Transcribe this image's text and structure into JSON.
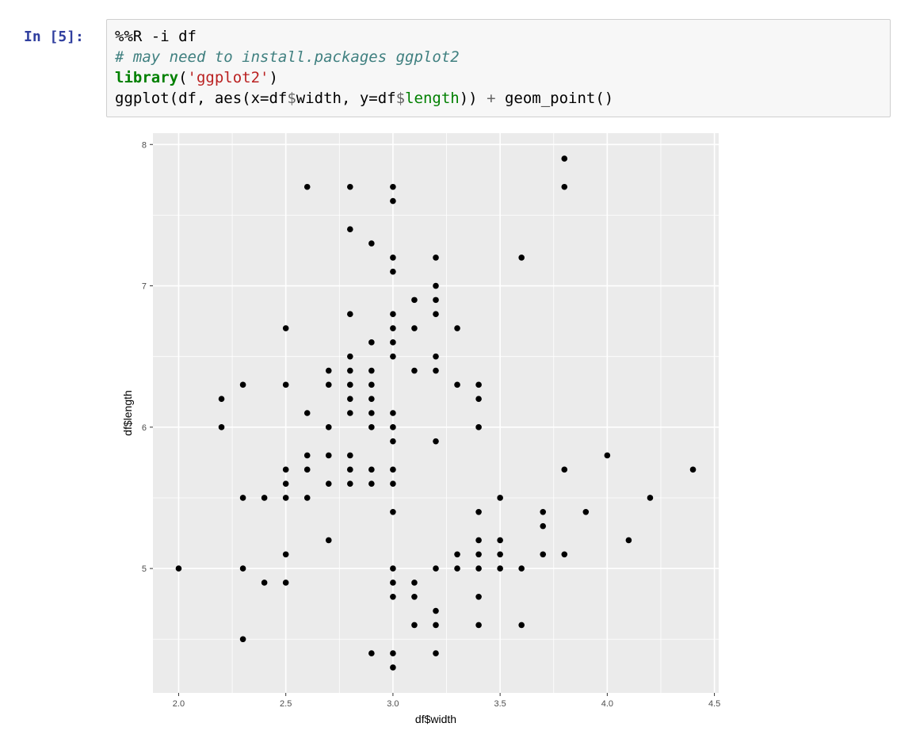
{
  "cell": {
    "prompt": "In [5]:",
    "lines": {
      "l1": "%%R -i df",
      "l2": "# may need to install.packages ggplot2",
      "l3_fn": "library",
      "l3_open": "(",
      "l3_str": "'ggplot2'",
      "l3_close": ")",
      "l4_a": "ggplot(df, aes(x=df",
      "l4_d1": "$",
      "l4_b": "width, y=df",
      "l4_d2": "$",
      "l4_c": "length",
      "l4_e": ")) ",
      "l4_plus": "+",
      "l4_f": " geom_point()"
    }
  },
  "chart_data": {
    "type": "scatter",
    "xlabel": "df$width",
    "ylabel": "df$length",
    "xlim": [
      1.88,
      4.52
    ],
    "ylim": [
      4.12,
      8.08
    ],
    "xticks": [
      "2.0",
      "2.5",
      "3.0",
      "3.5",
      "4.0",
      "4.5"
    ],
    "yticks": [
      "5",
      "6",
      "7",
      "8"
    ],
    "colors": {
      "panel": "#EBEBEB",
      "grid": "#FFFFFF",
      "point": "#000000",
      "axis_text": "#4D4D4D"
    },
    "points": [
      [
        3.8,
        7.9
      ],
      [
        2.6,
        7.7
      ],
      [
        2.8,
        7.7
      ],
      [
        3.0,
        7.7
      ],
      [
        3.8,
        7.7
      ],
      [
        3.0,
        7.6
      ],
      [
        2.8,
        7.4
      ],
      [
        2.9,
        7.3
      ],
      [
        3.0,
        7.2
      ],
      [
        3.2,
        7.2
      ],
      [
        3.6,
        7.2
      ],
      [
        3.0,
        7.1
      ],
      [
        3.2,
        7.0
      ],
      [
        3.1,
        6.9
      ],
      [
        3.2,
        6.9
      ],
      [
        2.8,
        6.8
      ],
      [
        3.0,
        6.8
      ],
      [
        3.2,
        6.8
      ],
      [
        2.5,
        6.7
      ],
      [
        3.0,
        6.7
      ],
      [
        3.1,
        6.7
      ],
      [
        3.3,
        6.7
      ],
      [
        2.9,
        6.6
      ],
      [
        3.0,
        6.6
      ],
      [
        2.8,
        6.5
      ],
      [
        3.0,
        6.5
      ],
      [
        3.2,
        6.5
      ],
      [
        2.7,
        6.4
      ],
      [
        2.8,
        6.4
      ],
      [
        2.9,
        6.4
      ],
      [
        3.1,
        6.4
      ],
      [
        3.2,
        6.4
      ],
      [
        2.3,
        6.3
      ],
      [
        2.5,
        6.3
      ],
      [
        2.7,
        6.3
      ],
      [
        2.8,
        6.3
      ],
      [
        2.9,
        6.3
      ],
      [
        3.3,
        6.3
      ],
      [
        3.4,
        6.3
      ],
      [
        2.2,
        6.2
      ],
      [
        2.8,
        6.2
      ],
      [
        2.9,
        6.2
      ],
      [
        3.4,
        6.2
      ],
      [
        2.6,
        6.1
      ],
      [
        2.8,
        6.1
      ],
      [
        2.9,
        6.1
      ],
      [
        3.0,
        6.1
      ],
      [
        2.2,
        6.0
      ],
      [
        2.7,
        6.0
      ],
      [
        2.9,
        6.0
      ],
      [
        3.0,
        6.0
      ],
      [
        3.4,
        6.0
      ],
      [
        3.0,
        5.9
      ],
      [
        3.2,
        5.9
      ],
      [
        2.6,
        5.8
      ],
      [
        2.7,
        5.8
      ],
      [
        2.8,
        5.8
      ],
      [
        4.0,
        5.8
      ],
      [
        2.5,
        5.7
      ],
      [
        2.6,
        5.7
      ],
      [
        2.8,
        5.7
      ],
      [
        2.9,
        5.7
      ],
      [
        3.0,
        5.7
      ],
      [
        3.8,
        5.7
      ],
      [
        4.4,
        5.7
      ],
      [
        2.5,
        5.6
      ],
      [
        2.7,
        5.6
      ],
      [
        2.8,
        5.6
      ],
      [
        2.9,
        5.6
      ],
      [
        3.0,
        5.6
      ],
      [
        2.3,
        5.5
      ],
      [
        2.4,
        5.5
      ],
      [
        2.5,
        5.5
      ],
      [
        2.6,
        5.5
      ],
      [
        3.5,
        5.5
      ],
      [
        4.2,
        5.5
      ],
      [
        3.0,
        5.4
      ],
      [
        3.4,
        5.4
      ],
      [
        3.7,
        5.4
      ],
      [
        3.9,
        5.4
      ],
      [
        3.7,
        5.3
      ],
      [
        2.7,
        5.2
      ],
      [
        3.4,
        5.2
      ],
      [
        3.5,
        5.2
      ],
      [
        4.1,
        5.2
      ],
      [
        2.5,
        5.1
      ],
      [
        3.3,
        5.1
      ],
      [
        3.4,
        5.1
      ],
      [
        3.5,
        5.1
      ],
      [
        3.7,
        5.1
      ],
      [
        3.8,
        5.1
      ],
      [
        2.0,
        5.0
      ],
      [
        2.3,
        5.0
      ],
      [
        3.0,
        5.0
      ],
      [
        3.2,
        5.0
      ],
      [
        3.3,
        5.0
      ],
      [
        3.4,
        5.0
      ],
      [
        3.5,
        5.0
      ],
      [
        3.6,
        5.0
      ],
      [
        2.4,
        4.9
      ],
      [
        2.5,
        4.9
      ],
      [
        3.0,
        4.9
      ],
      [
        3.1,
        4.9
      ],
      [
        3.0,
        4.8
      ],
      [
        3.1,
        4.8
      ],
      [
        3.4,
        4.8
      ],
      [
        3.2,
        4.7
      ],
      [
        3.1,
        4.6
      ],
      [
        3.2,
        4.6
      ],
      [
        3.4,
        4.6
      ],
      [
        3.6,
        4.6
      ],
      [
        2.3,
        4.5
      ],
      [
        2.9,
        4.4
      ],
      [
        3.0,
        4.4
      ],
      [
        3.2,
        4.4
      ],
      [
        3.0,
        4.3
      ]
    ]
  }
}
